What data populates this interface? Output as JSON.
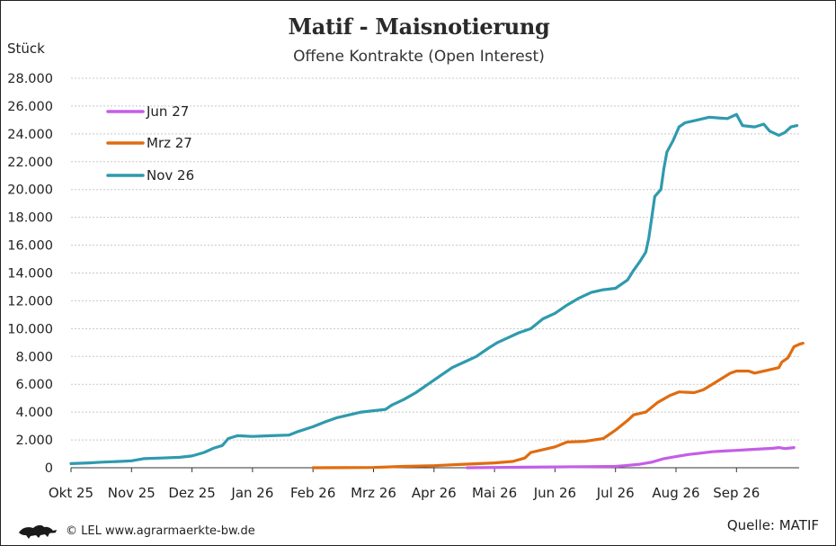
{
  "header": {
    "title": "Matif - Maisnotierung",
    "subtitle": "Offene Kontrakte (Open Interest)",
    "y_unit": "Stück"
  },
  "footer": {
    "copyright": "© LEL www.agrarmaerkte-bw.de",
    "source": "Quelle: MATIF"
  },
  "chart_data": {
    "type": "line",
    "title": "Matif - Maisnotierung",
    "subtitle": "Offene Kontrakte (Open Interest)",
    "ylabel": "Stück",
    "ylim": [
      0,
      28000
    ],
    "y_ticks": [
      0,
      2000,
      4000,
      6000,
      8000,
      10000,
      12000,
      14000,
      16000,
      18000,
      20000,
      22000,
      24000,
      26000,
      28000
    ],
    "y_tick_labels": [
      "0",
      "2.000",
      "4.000",
      "6.000",
      "8.000",
      "10.000",
      "12.000",
      "14.000",
      "16.000",
      "18.000",
      "20.000",
      "22.000",
      "24.000",
      "26.000",
      "28.000"
    ],
    "x_ticks": [
      "Okt 25",
      "Nov 25",
      "Dez 25",
      "Jan 26",
      "Feb 26",
      "Mrz 26",
      "Apr 26",
      "Mai 26",
      "Jun 26",
      "Jul 26",
      "Aug 26",
      "Sep 26"
    ],
    "x_unit_note": "x values are months since Okt 25",
    "grid": "horizontal dashed",
    "legend_placement": "top-left",
    "series": [
      {
        "name": "Jun 27",
        "color": "#c45ee6",
        "points": [
          [
            6.55,
            0
          ],
          [
            7.0,
            20
          ],
          [
            7.5,
            40
          ],
          [
            8.0,
            60
          ],
          [
            8.5,
            80
          ],
          [
            9.0,
            100
          ],
          [
            9.15,
            150
          ],
          [
            9.4,
            250
          ],
          [
            9.6,
            400
          ],
          [
            9.8,
            650
          ],
          [
            10.0,
            800
          ],
          [
            10.2,
            950
          ],
          [
            10.4,
            1050
          ],
          [
            10.6,
            1150
          ],
          [
            10.8,
            1200
          ],
          [
            11.0,
            1250
          ],
          [
            11.2,
            1300
          ],
          [
            11.4,
            1350
          ],
          [
            11.6,
            1400
          ],
          [
            11.7,
            1450
          ],
          [
            11.8,
            1380
          ],
          [
            11.9,
            1420
          ],
          [
            11.95,
            1450
          ]
        ]
      },
      {
        "name": "Mrz 27",
        "color": "#e06c10",
        "points": [
          [
            4.0,
            0
          ],
          [
            5.0,
            20
          ],
          [
            5.5,
            100
          ],
          [
            6.0,
            150
          ],
          [
            6.5,
            250
          ],
          [
            7.0,
            350
          ],
          [
            7.3,
            450
          ],
          [
            7.5,
            700
          ],
          [
            7.6,
            1100
          ],
          [
            7.8,
            1300
          ],
          [
            8.0,
            1500
          ],
          [
            8.2,
            1850
          ],
          [
            8.5,
            1900
          ],
          [
            8.8,
            2100
          ],
          [
            9.0,
            2700
          ],
          [
            9.2,
            3400
          ],
          [
            9.3,
            3800
          ],
          [
            9.5,
            4000
          ],
          [
            9.7,
            4700
          ],
          [
            9.9,
            5200
          ],
          [
            10.05,
            5450
          ],
          [
            10.3,
            5400
          ],
          [
            10.45,
            5600
          ],
          [
            10.6,
            6000
          ],
          [
            10.75,
            6400
          ],
          [
            10.9,
            6800
          ],
          [
            11.0,
            6950
          ],
          [
            11.2,
            6950
          ],
          [
            11.3,
            6800
          ],
          [
            11.5,
            7000
          ],
          [
            11.7,
            7200
          ],
          [
            11.75,
            7600
          ],
          [
            11.85,
            7900
          ],
          [
            11.9,
            8300
          ],
          [
            11.95,
            8700
          ],
          [
            12.05,
            8900
          ],
          [
            12.1,
            8950
          ]
        ]
      },
      {
        "name": "Nov 26",
        "color": "#2f9aad",
        "points": [
          [
            0.0,
            300
          ],
          [
            0.3,
            350
          ],
          [
            0.5,
            400
          ],
          [
            0.8,
            450
          ],
          [
            1.0,
            500
          ],
          [
            1.2,
            650
          ],
          [
            1.5,
            700
          ],
          [
            1.8,
            750
          ],
          [
            2.0,
            850
          ],
          [
            2.2,
            1100
          ],
          [
            2.35,
            1400
          ],
          [
            2.5,
            1600
          ],
          [
            2.6,
            2100
          ],
          [
            2.75,
            2300
          ],
          [
            3.0,
            2250
          ],
          [
            3.3,
            2300
          ],
          [
            3.6,
            2350
          ],
          [
            3.75,
            2600
          ],
          [
            4.0,
            2950
          ],
          [
            4.2,
            3300
          ],
          [
            4.4,
            3600
          ],
          [
            4.6,
            3800
          ],
          [
            4.8,
            4000
          ],
          [
            5.0,
            4100
          ],
          [
            5.2,
            4200
          ],
          [
            5.3,
            4500
          ],
          [
            5.5,
            4900
          ],
          [
            5.7,
            5400
          ],
          [
            5.9,
            6000
          ],
          [
            6.1,
            6600
          ],
          [
            6.3,
            7200
          ],
          [
            6.5,
            7600
          ],
          [
            6.7,
            8000
          ],
          [
            6.9,
            8600
          ],
          [
            7.05,
            9000
          ],
          [
            7.2,
            9300
          ],
          [
            7.4,
            9700
          ],
          [
            7.6,
            10000
          ],
          [
            7.8,
            10700
          ],
          [
            8.0,
            11100
          ],
          [
            8.2,
            11700
          ],
          [
            8.4,
            12200
          ],
          [
            8.6,
            12600
          ],
          [
            8.8,
            12800
          ],
          [
            9.0,
            12900
          ],
          [
            9.2,
            13500
          ],
          [
            9.3,
            14200
          ],
          [
            9.4,
            14800
          ],
          [
            9.5,
            15500
          ],
          [
            9.55,
            16500
          ],
          [
            9.6,
            18000
          ],
          [
            9.65,
            19500
          ],
          [
            9.75,
            20000
          ],
          [
            9.8,
            21500
          ],
          [
            9.85,
            22700
          ],
          [
            9.95,
            23500
          ],
          [
            10.05,
            24500
          ],
          [
            10.15,
            24800
          ],
          [
            10.35,
            25000
          ],
          [
            10.55,
            25200
          ],
          [
            10.7,
            25150
          ],
          [
            10.85,
            25100
          ],
          [
            11.0,
            25400
          ],
          [
            11.1,
            24600
          ],
          [
            11.3,
            24500
          ],
          [
            11.45,
            24700
          ],
          [
            11.55,
            24200
          ],
          [
            11.7,
            23900
          ],
          [
            11.8,
            24100
          ],
          [
            11.9,
            24500
          ],
          [
            12.0,
            24600
          ]
        ]
      }
    ]
  }
}
